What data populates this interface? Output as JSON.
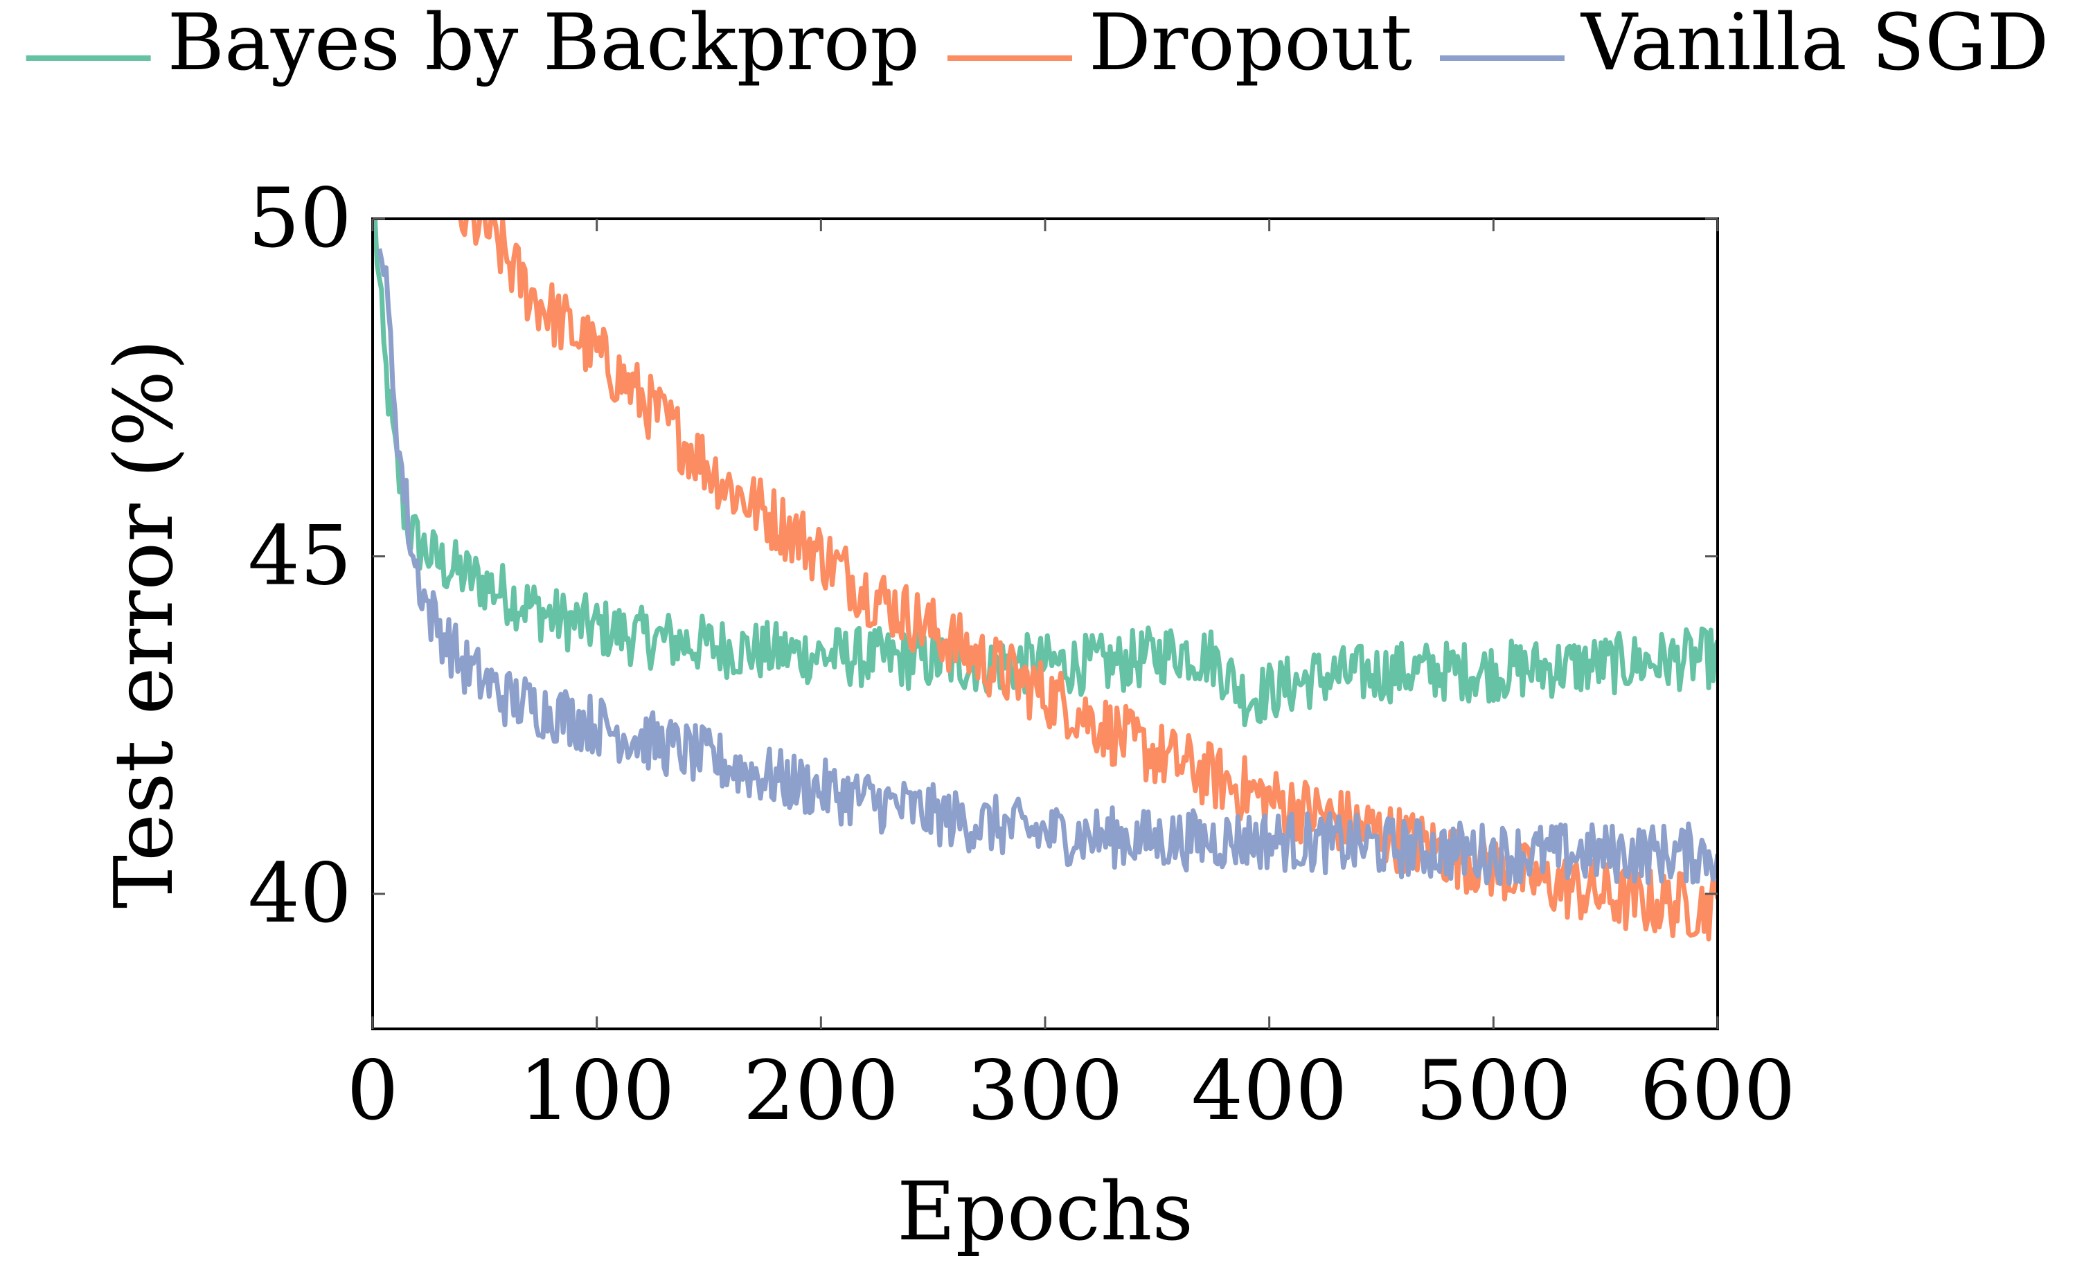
{
  "chart_data": {
    "type": "line",
    "xlabel": "Epochs",
    "ylabel": "Test error (%)",
    "xlim": [
      0,
      600
    ],
    "ylim": [
      38,
      50
    ],
    "xticks": [
      0,
      100,
      200,
      300,
      400,
      500,
      600
    ],
    "xtick_labels": [
      "0",
      "100",
      "200",
      "300",
      "400",
      "500",
      "600"
    ],
    "yticks": [
      40,
      45,
      50
    ],
    "ytick_labels": [
      "40",
      "45",
      "50"
    ],
    "grid": false,
    "legend_position": "top",
    "series": [
      {
        "name": "Bayes by Backprop",
        "color": "#66c2a5",
        "key_points": [
          [
            1,
            50.0
          ],
          [
            5,
            48.0
          ],
          [
            10,
            46.5
          ],
          [
            15,
            45.5
          ],
          [
            20,
            45.2
          ],
          [
            30,
            44.9
          ],
          [
            50,
            44.6
          ],
          [
            80,
            44.1
          ],
          [
            120,
            43.8
          ],
          [
            170,
            43.6
          ],
          [
            220,
            43.5
          ],
          [
            280,
            43.4
          ],
          [
            330,
            43.4
          ],
          [
            360,
            43.6
          ],
          [
            375,
            43.5
          ],
          [
            390,
            42.9
          ],
          [
            420,
            43.2
          ],
          [
            460,
            43.3
          ],
          [
            500,
            43.3
          ],
          [
            550,
            43.4
          ],
          [
            600,
            43.5
          ]
        ],
        "noise_amplitude": 0.45
      },
      {
        "name": "Dropout",
        "color": "#fc8d62",
        "key_points": [
          [
            38,
            50.0
          ],
          [
            50,
            49.9
          ],
          [
            70,
            48.9
          ],
          [
            100,
            48.0
          ],
          [
            130,
            47.0
          ],
          [
            160,
            46.0
          ],
          [
            190,
            45.3
          ],
          [
            220,
            44.5
          ],
          [
            250,
            43.9
          ],
          [
            280,
            43.3
          ],
          [
            310,
            42.8
          ],
          [
            340,
            42.2
          ],
          [
            370,
            41.8
          ],
          [
            400,
            41.4
          ],
          [
            440,
            41.0
          ],
          [
            480,
            40.6
          ],
          [
            520,
            40.2
          ],
          [
            560,
            39.9
          ],
          [
            600,
            39.8
          ]
        ],
        "noise_amplitude": 0.5
      },
      {
        "name": "Vanilla SGD",
        "color": "#8da0cb",
        "key_points": [
          [
            3,
            50.0
          ],
          [
            7,
            48.5
          ],
          [
            12,
            46.5
          ],
          [
            18,
            45.0
          ],
          [
            25,
            44.2
          ],
          [
            40,
            43.4
          ],
          [
            60,
            42.9
          ],
          [
            100,
            42.5
          ],
          [
            140,
            42.1
          ],
          [
            180,
            41.7
          ],
          [
            220,
            41.4
          ],
          [
            260,
            41.1
          ],
          [
            300,
            40.9
          ],
          [
            350,
            40.8
          ],
          [
            400,
            40.8
          ],
          [
            450,
            40.7
          ],
          [
            500,
            40.6
          ],
          [
            550,
            40.6
          ],
          [
            600,
            40.6
          ]
        ],
        "noise_amplitude": 0.45
      }
    ]
  }
}
